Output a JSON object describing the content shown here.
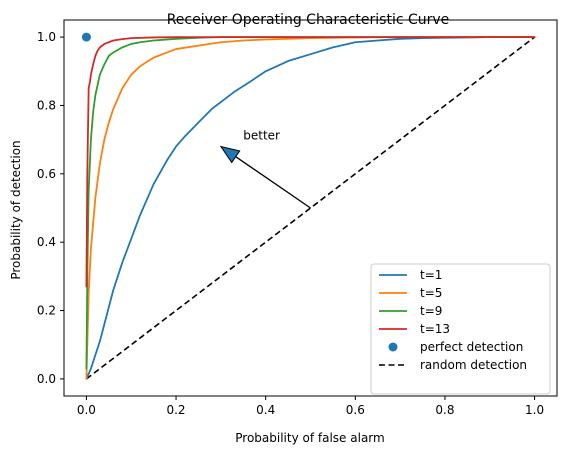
{
  "chart_data": {
    "type": "line",
    "title": "Receiver Operating Characteristic Curve",
    "xlabel": "Probability of false alarm",
    "ylabel": "Probability of detection",
    "xlim": [
      -0.05,
      1.05
    ],
    "ylim": [
      -0.05,
      1.05
    ],
    "x_ticks": [
      "0.0",
      "0.2",
      "0.4",
      "0.6",
      "0.8",
      "1.0"
    ],
    "y_ticks": [
      "0.0",
      "0.2",
      "0.4",
      "0.6",
      "0.8",
      "1.0"
    ],
    "grid": false,
    "legend_position": "lower-right",
    "series": [
      {
        "name": "t=1",
        "color": "#1f77b4",
        "x": [
          0.0,
          0.01,
          0.02,
          0.03,
          0.04,
          0.05,
          0.06,
          0.08,
          0.1,
          0.12,
          0.15,
          0.18,
          0.2,
          0.22,
          0.25,
          0.28,
          0.3,
          0.33,
          0.36,
          0.4,
          0.45,
          0.5,
          0.55,
          0.6,
          0.65,
          0.7,
          0.75,
          0.8,
          0.85,
          0.9,
          0.95,
          1.0
        ],
        "y": [
          0.0,
          0.03,
          0.07,
          0.11,
          0.16,
          0.21,
          0.26,
          0.34,
          0.41,
          0.48,
          0.57,
          0.64,
          0.68,
          0.71,
          0.75,
          0.79,
          0.81,
          0.84,
          0.865,
          0.9,
          0.93,
          0.95,
          0.97,
          0.985,
          0.99,
          0.995,
          0.997,
          0.998,
          0.999,
          1.0,
          1.0,
          1.0
        ]
      },
      {
        "name": "t=5",
        "color": "#ff7f0e",
        "x": [
          0.0,
          0.005,
          0.01,
          0.02,
          0.03,
          0.04,
          0.05,
          0.06,
          0.07,
          0.08,
          0.1,
          0.12,
          0.15,
          0.18,
          0.2,
          0.25,
          0.3,
          0.35,
          0.4,
          0.5,
          0.6,
          0.7,
          0.8,
          0.9,
          1.0
        ],
        "y": [
          0.0,
          0.25,
          0.38,
          0.53,
          0.63,
          0.7,
          0.75,
          0.79,
          0.82,
          0.85,
          0.89,
          0.915,
          0.94,
          0.955,
          0.965,
          0.975,
          0.985,
          0.99,
          0.993,
          0.997,
          0.999,
          1.0,
          1.0,
          1.0,
          1.0
        ]
      },
      {
        "name": "t=9",
        "color": "#2ca02c",
        "x": [
          0.0,
          0.002,
          0.005,
          0.01,
          0.015,
          0.02,
          0.03,
          0.04,
          0.05,
          0.06,
          0.08,
          0.1,
          0.12,
          0.15,
          0.2,
          0.25,
          0.3,
          0.4,
          0.5,
          0.6,
          0.8,
          1.0
        ],
        "y": [
          0.03,
          0.3,
          0.55,
          0.7,
          0.78,
          0.83,
          0.89,
          0.92,
          0.945,
          0.955,
          0.97,
          0.98,
          0.985,
          0.99,
          0.995,
          0.998,
          1.0,
          1.0,
          1.0,
          1.0,
          1.0,
          1.0
        ]
      },
      {
        "name": "t=13",
        "color": "#d62728",
        "x": [
          0.0,
          0.002,
          0.005,
          0.008,
          0.01,
          0.015,
          0.02,
          0.025,
          0.03,
          0.04,
          0.05,
          0.06,
          0.08,
          0.1,
          0.15,
          0.2,
          0.3,
          0.5,
          0.7,
          1.0
        ],
        "y": [
          0.27,
          0.6,
          0.85,
          0.87,
          0.89,
          0.92,
          0.945,
          0.96,
          0.97,
          0.98,
          0.985,
          0.99,
          0.994,
          0.997,
          0.999,
          1.0,
          1.0,
          1.0,
          1.0,
          1.0
        ]
      }
    ],
    "perfect_detection": {
      "name": "perfect detection",
      "color": "#1f77b4",
      "x": 0.0,
      "y": 1.0
    },
    "random_detection": {
      "name": "random detection",
      "color": "#000000",
      "x": [
        0.0,
        1.0
      ],
      "y": [
        0.0,
        1.0
      ]
    },
    "annotation": {
      "text": "better",
      "text_x": 0.35,
      "text_y": 0.7,
      "arrow_from": [
        0.5,
        0.5
      ],
      "arrow_to": [
        0.3,
        0.68
      ]
    }
  }
}
